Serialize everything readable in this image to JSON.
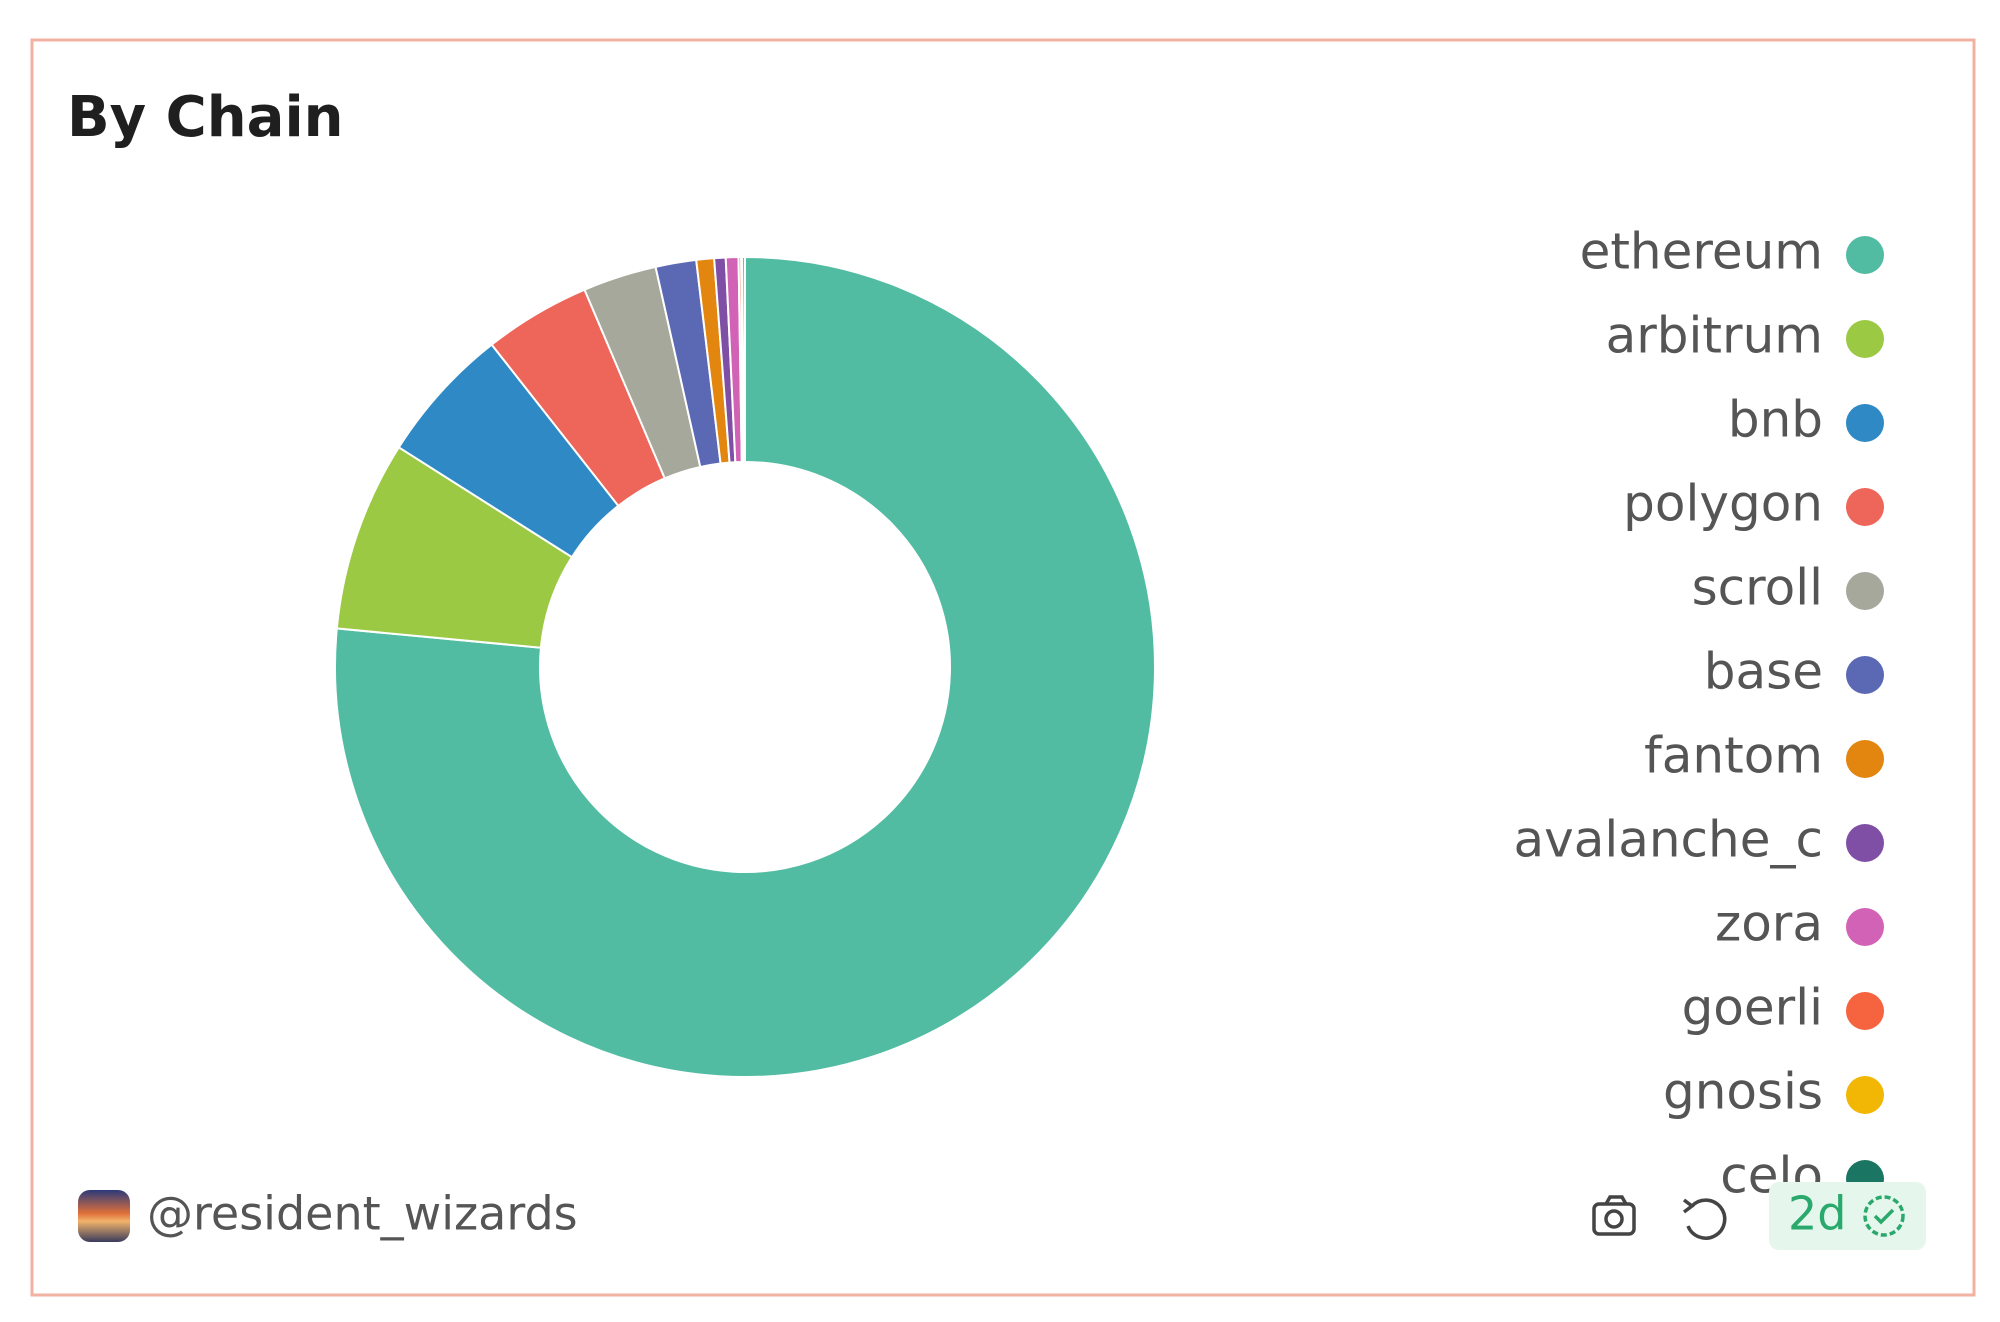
{
  "chart_data": {
    "type": "pie",
    "title": "By Chain",
    "categories": [
      "ethereum",
      "arbitrum",
      "bnb",
      "polygon",
      "scroll",
      "base",
      "fantom",
      "avalanche_c",
      "zora",
      "goerli",
      "gnosis",
      "celo"
    ],
    "values": [
      76.5,
      7.5,
      5.4,
      4.2,
      2.9,
      1.6,
      0.7,
      0.45,
      0.5,
      0.1,
      0.05,
      0.1
    ],
    "colors": [
      "#52bca3",
      "#9cc944",
      "#2f89c5",
      "#ee655a",
      "#a5a89a",
      "#5b69b5",
      "#e3860f",
      "#7f4fa6",
      "#d262b5",
      "#f5633f",
      "#f2b705",
      "#1b7563"
    ],
    "donut": true,
    "legend": "right"
  },
  "footer": {
    "author": "@resident_wizards",
    "age": "2d"
  }
}
